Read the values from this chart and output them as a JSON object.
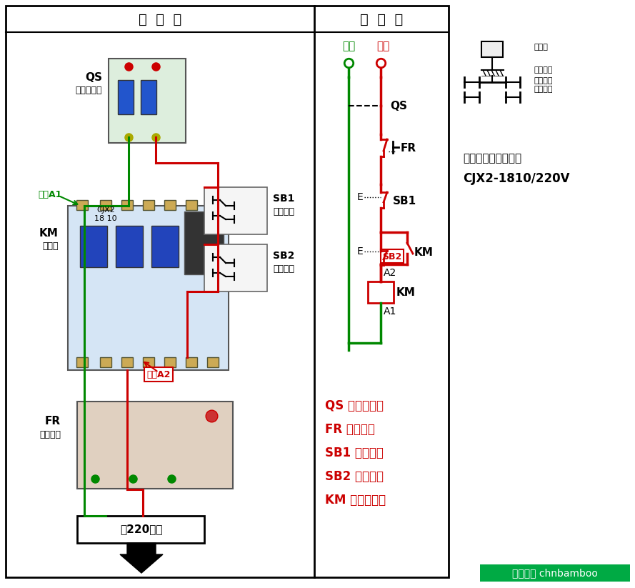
{
  "title_left": "实  物  图",
  "title_right": "原  理  图",
  "bg_color": "#ffffff",
  "green": "#008800",
  "red": "#cc0000",
  "black": "#000000",
  "note_text1": "注：交流接触器选用",
  "note_text2": "CJX2-1810/220V",
  "legend_items": [
    "QS 空气断路器",
    "FR 热继电器",
    "SB1 停止按钮",
    "SB2 启动按钮",
    "KM 交流接触器"
  ],
  "btn_labels": [
    "按钮帽",
    "复位弹簧",
    "常闭触头",
    "常开触头"
  ],
  "watermark": "百度知道 chnbamboo",
  "coil_a1": "线圈A1",
  "coil_a2": "线圈A2",
  "label_QS": "QS",
  "label_QS2": "空气断路器",
  "label_KM": "KM",
  "label_KM2": "接触器",
  "label_FR": "FR",
  "label_FR2": "热继电器",
  "label_motor": "接220电机",
  "label_SB1": "SB1",
  "label_SB1b": "停止按钮",
  "label_SB2": "SB2",
  "label_SB2b": "启动按钮",
  "label_zero": "零线",
  "label_hot": "火线",
  "label_QS_sch": "QS",
  "label_FR_sch": "FR",
  "label_SB1_sch": "SB1",
  "label_SB2_sch": "SB2",
  "label_KM_sch": "KM",
  "label_A2": "A2",
  "label_A1": "A1",
  "label_E": "E"
}
